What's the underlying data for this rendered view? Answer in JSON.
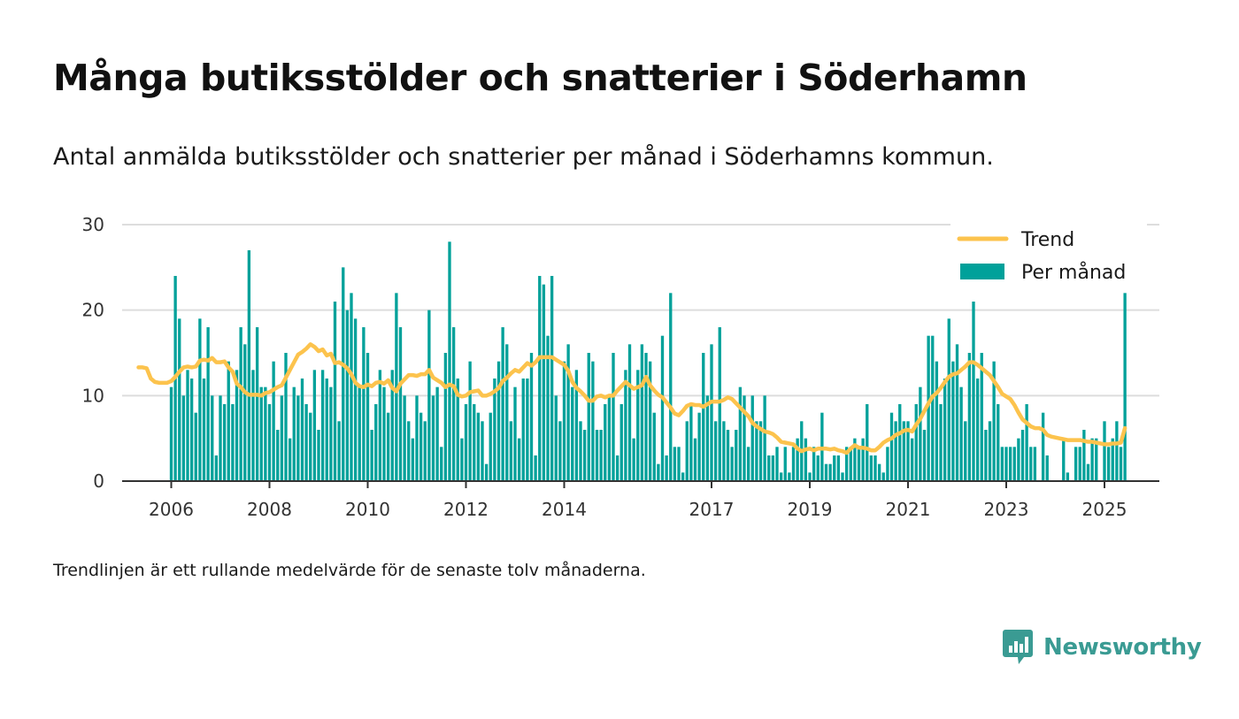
{
  "header": {
    "title": "Många butiksstölder och snatterier i Söderhamn",
    "subtitle": "Antal anmälda butiksstölder och snatterier per månad i Söderhamns kommun."
  },
  "footnote": "Trendlinjen är ett rullande medelvärde för de senaste tolv månaderna.",
  "brand": {
    "name": "Newsworthy",
    "icon": "newsworthy-logo-icon",
    "color": "#3a9b93"
  },
  "colors": {
    "bars": "#00a19a",
    "trend": "#fcc34d",
    "grid": "#dddddd",
    "axis": "#333333"
  },
  "chart_data": {
    "type": "bar",
    "title": "Många butiksstölder och snatterier i Söderhamn",
    "ylim": [
      0,
      30
    ],
    "yticks": [
      0,
      10,
      20,
      30
    ],
    "xticks": [
      2006,
      2008,
      2010,
      2012,
      2014,
      2017,
      2019,
      2021,
      2023,
      2025
    ],
    "grid": true,
    "legend_position": "top-right",
    "start": "2006-01",
    "series": [
      {
        "name": "Per månad",
        "kind": "bar",
        "values": [
          11,
          24,
          19,
          10,
          13,
          12,
          8,
          19,
          12,
          18,
          10,
          3,
          10,
          9,
          14,
          9,
          13,
          18,
          16,
          27,
          13,
          18,
          11,
          11,
          9,
          14,
          6,
          10,
          15,
          5,
          11,
          10,
          12,
          9,
          8,
          13,
          6,
          13,
          12,
          11,
          21,
          7,
          25,
          20,
          22,
          19,
          11,
          18,
          15,
          6,
          9,
          13,
          11,
          8,
          13,
          22,
          18,
          10,
          7,
          5,
          10,
          8,
          7,
          20,
          10,
          11,
          4,
          15,
          28,
          18,
          12,
          5,
          9,
          14,
          9,
          8,
          7,
          2,
          8,
          12,
          14,
          18,
          16,
          7,
          11,
          5,
          12,
          12,
          15,
          3,
          24,
          23,
          17,
          24,
          10,
          7,
          14,
          16,
          11,
          13,
          7,
          6,
          15,
          14,
          6,
          6,
          9,
          10,
          15,
          3,
          9,
          13,
          16,
          5,
          13,
          16,
          15,
          14,
          8,
          2,
          17,
          3,
          22,
          4,
          4,
          1,
          7,
          9,
          5,
          8,
          15,
          10,
          16,
          7,
          18,
          7,
          6,
          4,
          6,
          11,
          10,
          4,
          10,
          7,
          7,
          10,
          3,
          3,
          4,
          1,
          4,
          1,
          4,
          5,
          7,
          5,
          1,
          4,
          3,
          8,
          2,
          2,
          3,
          3,
          1,
          4,
          4,
          5,
          4,
          5,
          9,
          3,
          3,
          2,
          1,
          4,
          8,
          7,
          9,
          7,
          7,
          5,
          9,
          11,
          6,
          17,
          17,
          14,
          9,
          12,
          19,
          14,
          16,
          11,
          7,
          15,
          21,
          12,
          15,
          6,
          7,
          14,
          9,
          4,
          4,
          4,
          4,
          5,
          6,
          9,
          4,
          4,
          0,
          8,
          3,
          0,
          0,
          0,
          5,
          1,
          0,
          4,
          4,
          6,
          2,
          5,
          5,
          0,
          7,
          4,
          5,
          7,
          4,
          22
        ],
        "color": "#00a19a"
      },
      {
        "name": "Trend",
        "kind": "line",
        "values": [
          13.3,
          13.3,
          13.2,
          12.0,
          11.6,
          11.5,
          11.5,
          11.5,
          11.7,
          12.2,
          12.8,
          13.3,
          13.4,
          13.3,
          13.4,
          14.1,
          14.2,
          14.1,
          14.4,
          13.9,
          13.9,
          14.0,
          13.3,
          12.8,
          11.4,
          11.0,
          10.4,
          10.1,
          10.1,
          10.1,
          10.0,
          10.3,
          10.4,
          10.7,
          11.0,
          11.2,
          12.1,
          13.0,
          13.9,
          14.8,
          15.1,
          15.5,
          16.0,
          15.7,
          15.2,
          15.4,
          14.7,
          14.9,
          13.8,
          13.9,
          13.6,
          13.2,
          12.5,
          11.5,
          11.1,
          11.0,
          11.3,
          11.1,
          11.5,
          11.6,
          11.4,
          11.8,
          10.9,
          10.5,
          11.4,
          11.9,
          12.4,
          12.4,
          12.3,
          12.5,
          12.5,
          13.0,
          12.1,
          11.8,
          11.5,
          11.0,
          11.3,
          11.1,
          10.1,
          9.9,
          10.0,
          10.4,
          10.5,
          10.6,
          10.0,
          10.0,
          10.2,
          10.5,
          10.9,
          11.7,
          12.1,
          12.6,
          13.0,
          12.8,
          13.3,
          13.8,
          13.5,
          13.9,
          14.5,
          14.5,
          14.5,
          14.5,
          14.2,
          13.9,
          13.6,
          12.9,
          11.6,
          10.9,
          10.5,
          10.0,
          9.4,
          9.4,
          9.9,
          10.0,
          9.8,
          10.0,
          10.0,
          10.6,
          11.1,
          11.6,
          11.2,
          10.8,
          11.0,
          11.2,
          12.2,
          11.2,
          10.6,
          10.1,
          9.8,
          9.2,
          8.6,
          7.9,
          7.7,
          8.2,
          8.8,
          9.0,
          8.9,
          8.9,
          8.7,
          9.0,
          9.3,
          9.3,
          9.3,
          9.5,
          9.8,
          9.6,
          9.1,
          8.6,
          8.1,
          7.6,
          6.8,
          6.4,
          6.1,
          5.8,
          5.7,
          5.5,
          5.1,
          4.6,
          4.5,
          4.4,
          4.3,
          3.8,
          3.5,
          3.7,
          3.8,
          3.6,
          3.8,
          3.8,
          3.8,
          3.7,
          3.8,
          3.6,
          3.5,
          3.3,
          3.8,
          4.2,
          3.9,
          3.9,
          3.8,
          3.6,
          3.6,
          4.0,
          4.5,
          4.8,
          5.0,
          5.4,
          5.6,
          5.9,
          6.0,
          5.8,
          6.6,
          7.3,
          8.2,
          9.1,
          9.9,
          10.3,
          10.9,
          11.6,
          12.2,
          12.5,
          12.6,
          13.0,
          13.4,
          13.9,
          13.9,
          13.6,
          13.2,
          12.8,
          12.4,
          11.7,
          11.0,
          10.2,
          9.9,
          9.6,
          8.9,
          8.0,
          7.2,
          6.8,
          6.4,
          6.2,
          6.2,
          6.0,
          5.4,
          5.2,
          5.1,
          5.0,
          4.9,
          4.8,
          4.8,
          4.8,
          4.8,
          4.7,
          4.6,
          4.6,
          4.5,
          4.4,
          4.3,
          4.3,
          4.4,
          4.4,
          4.5,
          6.2
        ],
        "color": "#fcc34d"
      }
    ]
  }
}
